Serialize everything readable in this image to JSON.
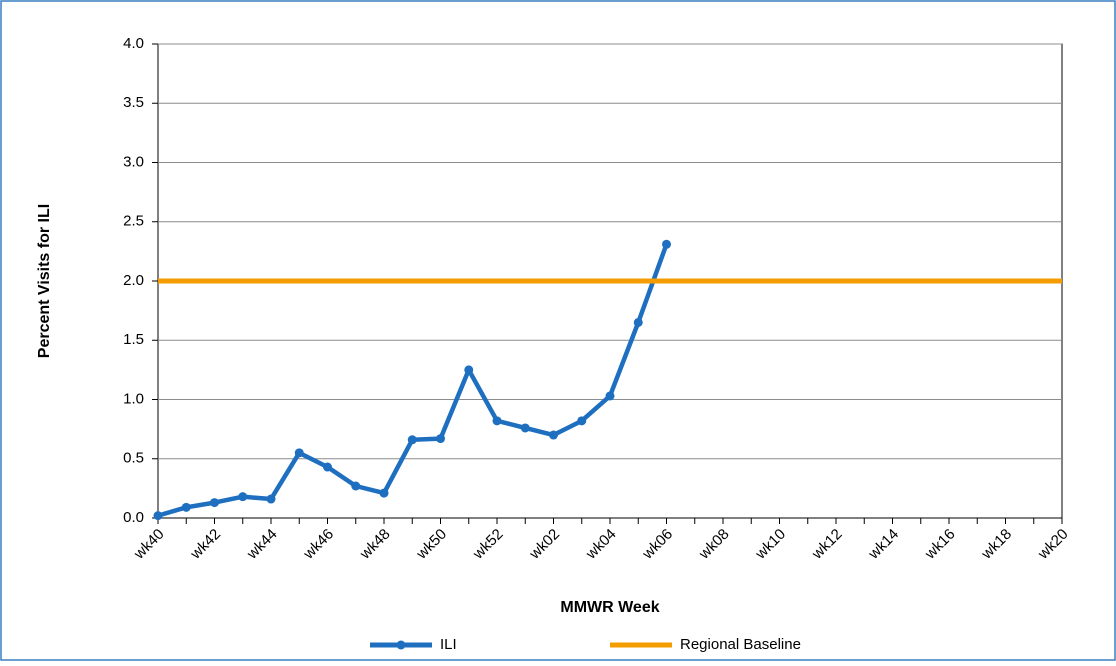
{
  "chart_data": {
    "type": "line",
    "x_label": "MMWR Week",
    "y_label": "Percent Visits for ILI",
    "categories": [
      "wk40",
      null,
      "wk42",
      null,
      "wk44",
      null,
      "wk46",
      null,
      "wk48",
      null,
      "wk50",
      null,
      "wk52",
      null,
      "wk02",
      null,
      "wk04",
      null,
      "wk06",
      null,
      "wk08",
      null,
      "wk10",
      null,
      "wk12",
      null,
      "wk14",
      null,
      "wk16",
      null,
      "wk18",
      null,
      "wk20"
    ],
    "series": [
      {
        "name": "ILI",
        "color": "#1f6fc0",
        "marker": true,
        "values": [
          0.02,
          0.09,
          0.13,
          0.18,
          0.16,
          0.55,
          0.43,
          0.27,
          0.21,
          0.66,
          0.67,
          1.25,
          0.82,
          0.76,
          0.7,
          0.82,
          1.03,
          1.65,
          2.31,
          null,
          null,
          null,
          null,
          null,
          null,
          null,
          null,
          null,
          null,
          null,
          null,
          null,
          null
        ]
      },
      {
        "name": "Regional Baseline",
        "color": "#f59d00",
        "marker": false,
        "values": [
          2.0,
          2.0,
          2.0,
          2.0,
          2.0,
          2.0,
          2.0,
          2.0,
          2.0,
          2.0,
          2.0,
          2.0,
          2.0,
          2.0,
          2.0,
          2.0,
          2.0,
          2.0,
          2.0,
          2.0,
          2.0,
          2.0,
          2.0,
          2.0,
          2.0,
          2.0,
          2.0,
          2.0,
          2.0,
          2.0,
          2.0,
          2.0,
          2.0
        ]
      }
    ],
    "ylim": [
      0,
      4
    ],
    "yticks": [
      {
        "value": 0,
        "label": "0.0"
      },
      0.5,
      {
        "value": 1,
        "label": "1.0"
      },
      1.5,
      {
        "value": 2,
        "label": "2.0"
      },
      2.5,
      {
        "value": 3,
        "label": "3.0"
      },
      3.5,
      {
        "value": 4,
        "label": "4.0"
      }
    ],
    "grid": true,
    "legend": "bottom"
  }
}
